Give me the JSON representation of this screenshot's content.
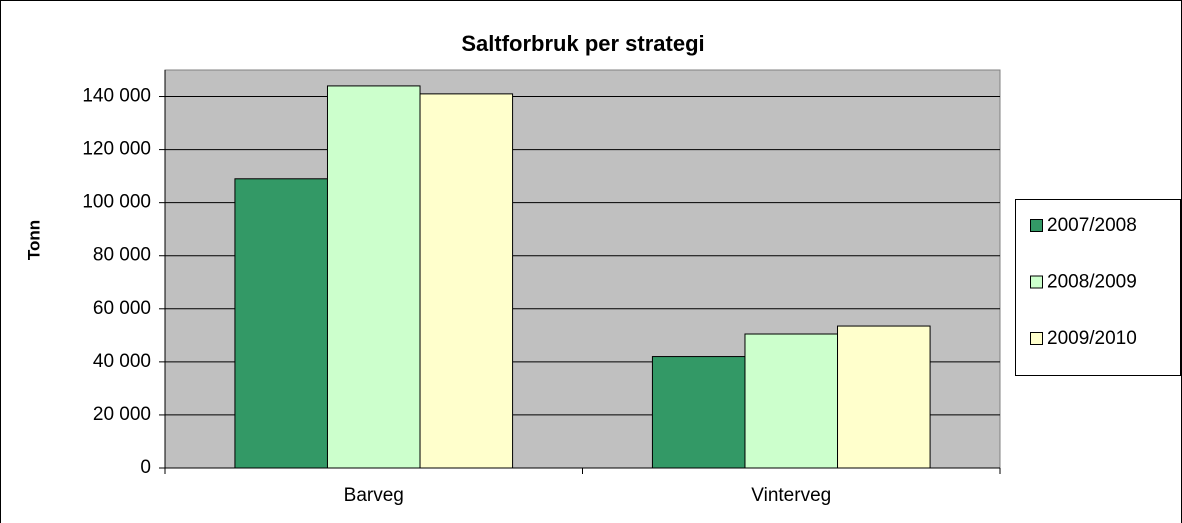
{
  "chart_data": {
    "type": "bar",
    "title": "Saltforbruk per strategi",
    "y_label": "Tonn",
    "categories": [
      "Barveg",
      "Vinterveg"
    ],
    "series": [
      {
        "name": "2007/2008",
        "color": "#339966",
        "values": [
          109000,
          42000
        ]
      },
      {
        "name": "2008/2009",
        "color": "#ccffcc",
        "values": [
          144000,
          50500
        ]
      },
      {
        "name": "2009/2010",
        "color": "#ffffcc",
        "values": [
          141000,
          53500
        ]
      }
    ],
    "ylim": [
      0,
      150000
    ],
    "yticks": [
      0,
      {
        "value": 20000,
        "label": "20 000"
      },
      {
        "value": 40000,
        "label": "40 000"
      },
      {
        "value": 60000,
        "label": "60 000"
      },
      {
        "value": 80000,
        "label": "80 000"
      },
      {
        "value": 100000,
        "label": "100 000"
      },
      {
        "value": 120000,
        "label": "120 000"
      },
      {
        "value": 140000,
        "label": "140 000"
      }
    ],
    "grid": true,
    "legend": "right",
    "plot_background": "#c0c0c0"
  }
}
